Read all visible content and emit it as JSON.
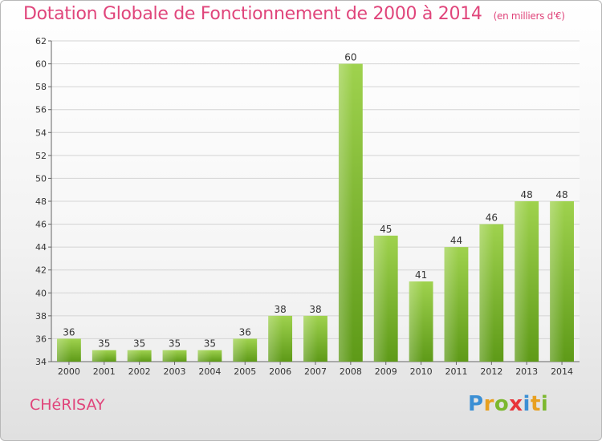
{
  "chart_data": {
    "type": "bar",
    "title": "Dotation Globale de Fonctionnement de 2000 à 2014",
    "subtitle": "(en milliers d'€)",
    "categories": [
      "2000",
      "2001",
      "2002",
      "2003",
      "2004",
      "2005",
      "2006",
      "2007",
      "2008",
      "2009",
      "2010",
      "2011",
      "2012",
      "2013",
      "2014"
    ],
    "values": [
      36,
      35,
      35,
      35,
      35,
      36,
      38,
      38,
      60,
      45,
      41,
      44,
      46,
      48,
      48
    ],
    "ylim": [
      34,
      62
    ],
    "yticks": [
      34,
      36,
      38,
      40,
      42,
      44,
      46,
      48,
      50,
      52,
      54,
      56,
      58,
      60,
      62
    ],
    "xlabel": "",
    "ylabel": "",
    "grid": true,
    "colors": {
      "bar_light": "#9fd24e",
      "bar_dark": "#5e9a18",
      "grid": "#d4d4d4"
    }
  },
  "location": "CHéRISAY",
  "brand": {
    "letters": [
      "P",
      "r",
      "o",
      "x",
      "i",
      "t",
      "i"
    ],
    "colors": [
      "#3b8fd4",
      "#e8a020",
      "#7cb82f",
      "#e8353a",
      "#3b8fd4",
      "#e8a020",
      "#7cb82f"
    ]
  }
}
